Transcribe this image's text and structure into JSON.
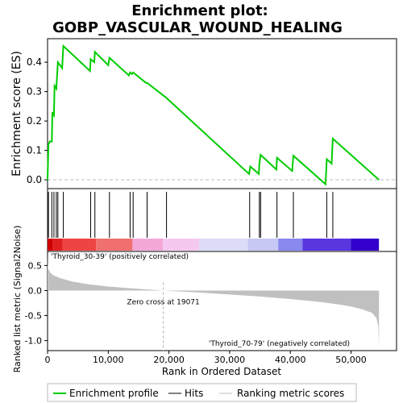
{
  "chart_data": {
    "type": "line",
    "title": "Enrichment plot:",
    "subtitle": "GOBP_VASCULAR_WOUND_HEALING",
    "panels": {
      "es": {
        "ylabel": "Enrichment score (ES)",
        "ylim": [
          -0.03,
          0.48
        ],
        "yticks": [
          0.0,
          0.1,
          0.2,
          0.3,
          0.4
        ],
        "ytick_labels": [
          "0.0",
          "0.1",
          "0.2",
          "0.3",
          "0.4"
        ],
        "line_color": "#00cc00",
        "points": [
          [
            0,
            0.0
          ],
          [
            150,
            0.12
          ],
          [
            350,
            0.13
          ],
          [
            700,
            0.13
          ],
          [
            800,
            0.23
          ],
          [
            1050,
            0.22
          ],
          [
            1150,
            0.32
          ],
          [
            1450,
            0.31
          ],
          [
            1700,
            0.4
          ],
          [
            2400,
            0.38
          ],
          [
            2600,
            0.455
          ],
          [
            7000,
            0.37
          ],
          [
            7100,
            0.41
          ],
          [
            7700,
            0.4
          ],
          [
            7800,
            0.435
          ],
          [
            10000,
            0.39
          ],
          [
            10200,
            0.415
          ],
          [
            13400,
            0.355
          ],
          [
            13600,
            0.365
          ],
          [
            13900,
            0.36
          ],
          [
            14100,
            0.365
          ],
          [
            16200,
            0.33
          ],
          [
            16400,
            0.33
          ],
          [
            19500,
            0.28
          ],
          [
            33200,
            0.02
          ],
          [
            33400,
            0.045
          ],
          [
            34800,
            0.02
          ],
          [
            34900,
            0.055
          ],
          [
            35100,
            0.085
          ],
          [
            37700,
            0.035
          ],
          [
            37800,
            0.075
          ],
          [
            40300,
            0.03
          ],
          [
            40500,
            0.082
          ],
          [
            45800,
            -0.015
          ],
          [
            46000,
            0.07
          ],
          [
            46800,
            0.055
          ],
          [
            47000,
            0.14
          ],
          [
            54600,
            0.0
          ]
        ]
      },
      "hits": {
        "positions": [
          150,
          700,
          1050,
          1450,
          1700,
          2600,
          7100,
          7800,
          10200,
          13600,
          14100,
          16400,
          19600,
          33300,
          34900,
          35100,
          37800,
          40500,
          46000,
          47000
        ]
      },
      "colorbar": {
        "left_label": "'Thyroid_30-39' (positively correlated)",
        "right_label": "'Thyroid_70-79' (negatively correlated)",
        "left_label_color": "#cc0000",
        "right_label_color": "#0000aa",
        "segments": [
          {
            "x0": 0,
            "x1": 800,
            "color": "#cc0000"
          },
          {
            "x0": 800,
            "x1": 2500,
            "color": "#e02020"
          },
          {
            "x0": 2500,
            "x1": 8000,
            "color": "#ee4444"
          },
          {
            "x0": 8000,
            "x1": 14000,
            "color": "#f07070"
          },
          {
            "x0": 14000,
            "x1": 19000,
            "color": "#f4a8d8"
          },
          {
            "x0": 19000,
            "x1": 25000,
            "color": "#f4c8f0"
          },
          {
            "x0": 25000,
            "x1": 33000,
            "color": "#dcdcf8"
          },
          {
            "x0": 33000,
            "x1": 38000,
            "color": "#c8c8f4"
          },
          {
            "x0": 38000,
            "x1": 42000,
            "color": "#8888ee"
          },
          {
            "x0": 42000,
            "x1": 50000,
            "color": "#5a36e0"
          },
          {
            "x0": 50000,
            "x1": 54600,
            "color": "#3300cc"
          }
        ]
      },
      "metric": {
        "ylabel": "Ranked list metric (Signal2Noise)",
        "ylim": [
          -1.2,
          0.78
        ],
        "yticks": [
          0.5,
          0.0,
          -0.5,
          -1.0
        ],
        "ytick_labels": [
          "0.5",
          "0.0",
          "-0.5",
          "-1.0"
        ],
        "zero_cross_label": "Zero cross at 19071",
        "zero_cross_x": 19071,
        "curve": [
          [
            0,
            0.72
          ],
          [
            40,
            0.5
          ],
          [
            150,
            0.42
          ],
          [
            500,
            0.35
          ],
          [
            1000,
            0.3
          ],
          [
            2000,
            0.25
          ],
          [
            4000,
            0.18
          ],
          [
            7000,
            0.12
          ],
          [
            10000,
            0.08
          ],
          [
            13000,
            0.05
          ],
          [
            16000,
            0.025
          ],
          [
            19071,
            0.0
          ],
          [
            22000,
            -0.02
          ],
          [
            25000,
            -0.04
          ],
          [
            30000,
            -0.08
          ],
          [
            35000,
            -0.12
          ],
          [
            40000,
            -0.17
          ],
          [
            45000,
            -0.23
          ],
          [
            48000,
            -0.28
          ],
          [
            50000,
            -0.32
          ],
          [
            52000,
            -0.38
          ],
          [
            53500,
            -0.45
          ],
          [
            54200,
            -0.55
          ],
          [
            54500,
            -0.72
          ],
          [
            54600,
            -1.15
          ]
        ],
        "fill_color": "#c0c0c0"
      }
    },
    "xlabel": "Rank in Ordered Dataset",
    "xlim": [
      0,
      57500
    ],
    "xticks": [
      0,
      10000,
      20000,
      30000,
      40000,
      50000
    ],
    "xtick_labels": [
      "0",
      "10,000",
      "20,000",
      "30,000",
      "40,000",
      "50,000"
    ],
    "legend": {
      "placement": "bottom",
      "entries": [
        {
          "label": "Enrichment profile",
          "color": "#00cc00",
          "style": "thick-line"
        },
        {
          "label": "Hits",
          "color": "#000000",
          "style": "line"
        },
        {
          "label": "Ranking metric scores",
          "color": "#c0c0c0",
          "style": "line"
        }
      ]
    }
  }
}
